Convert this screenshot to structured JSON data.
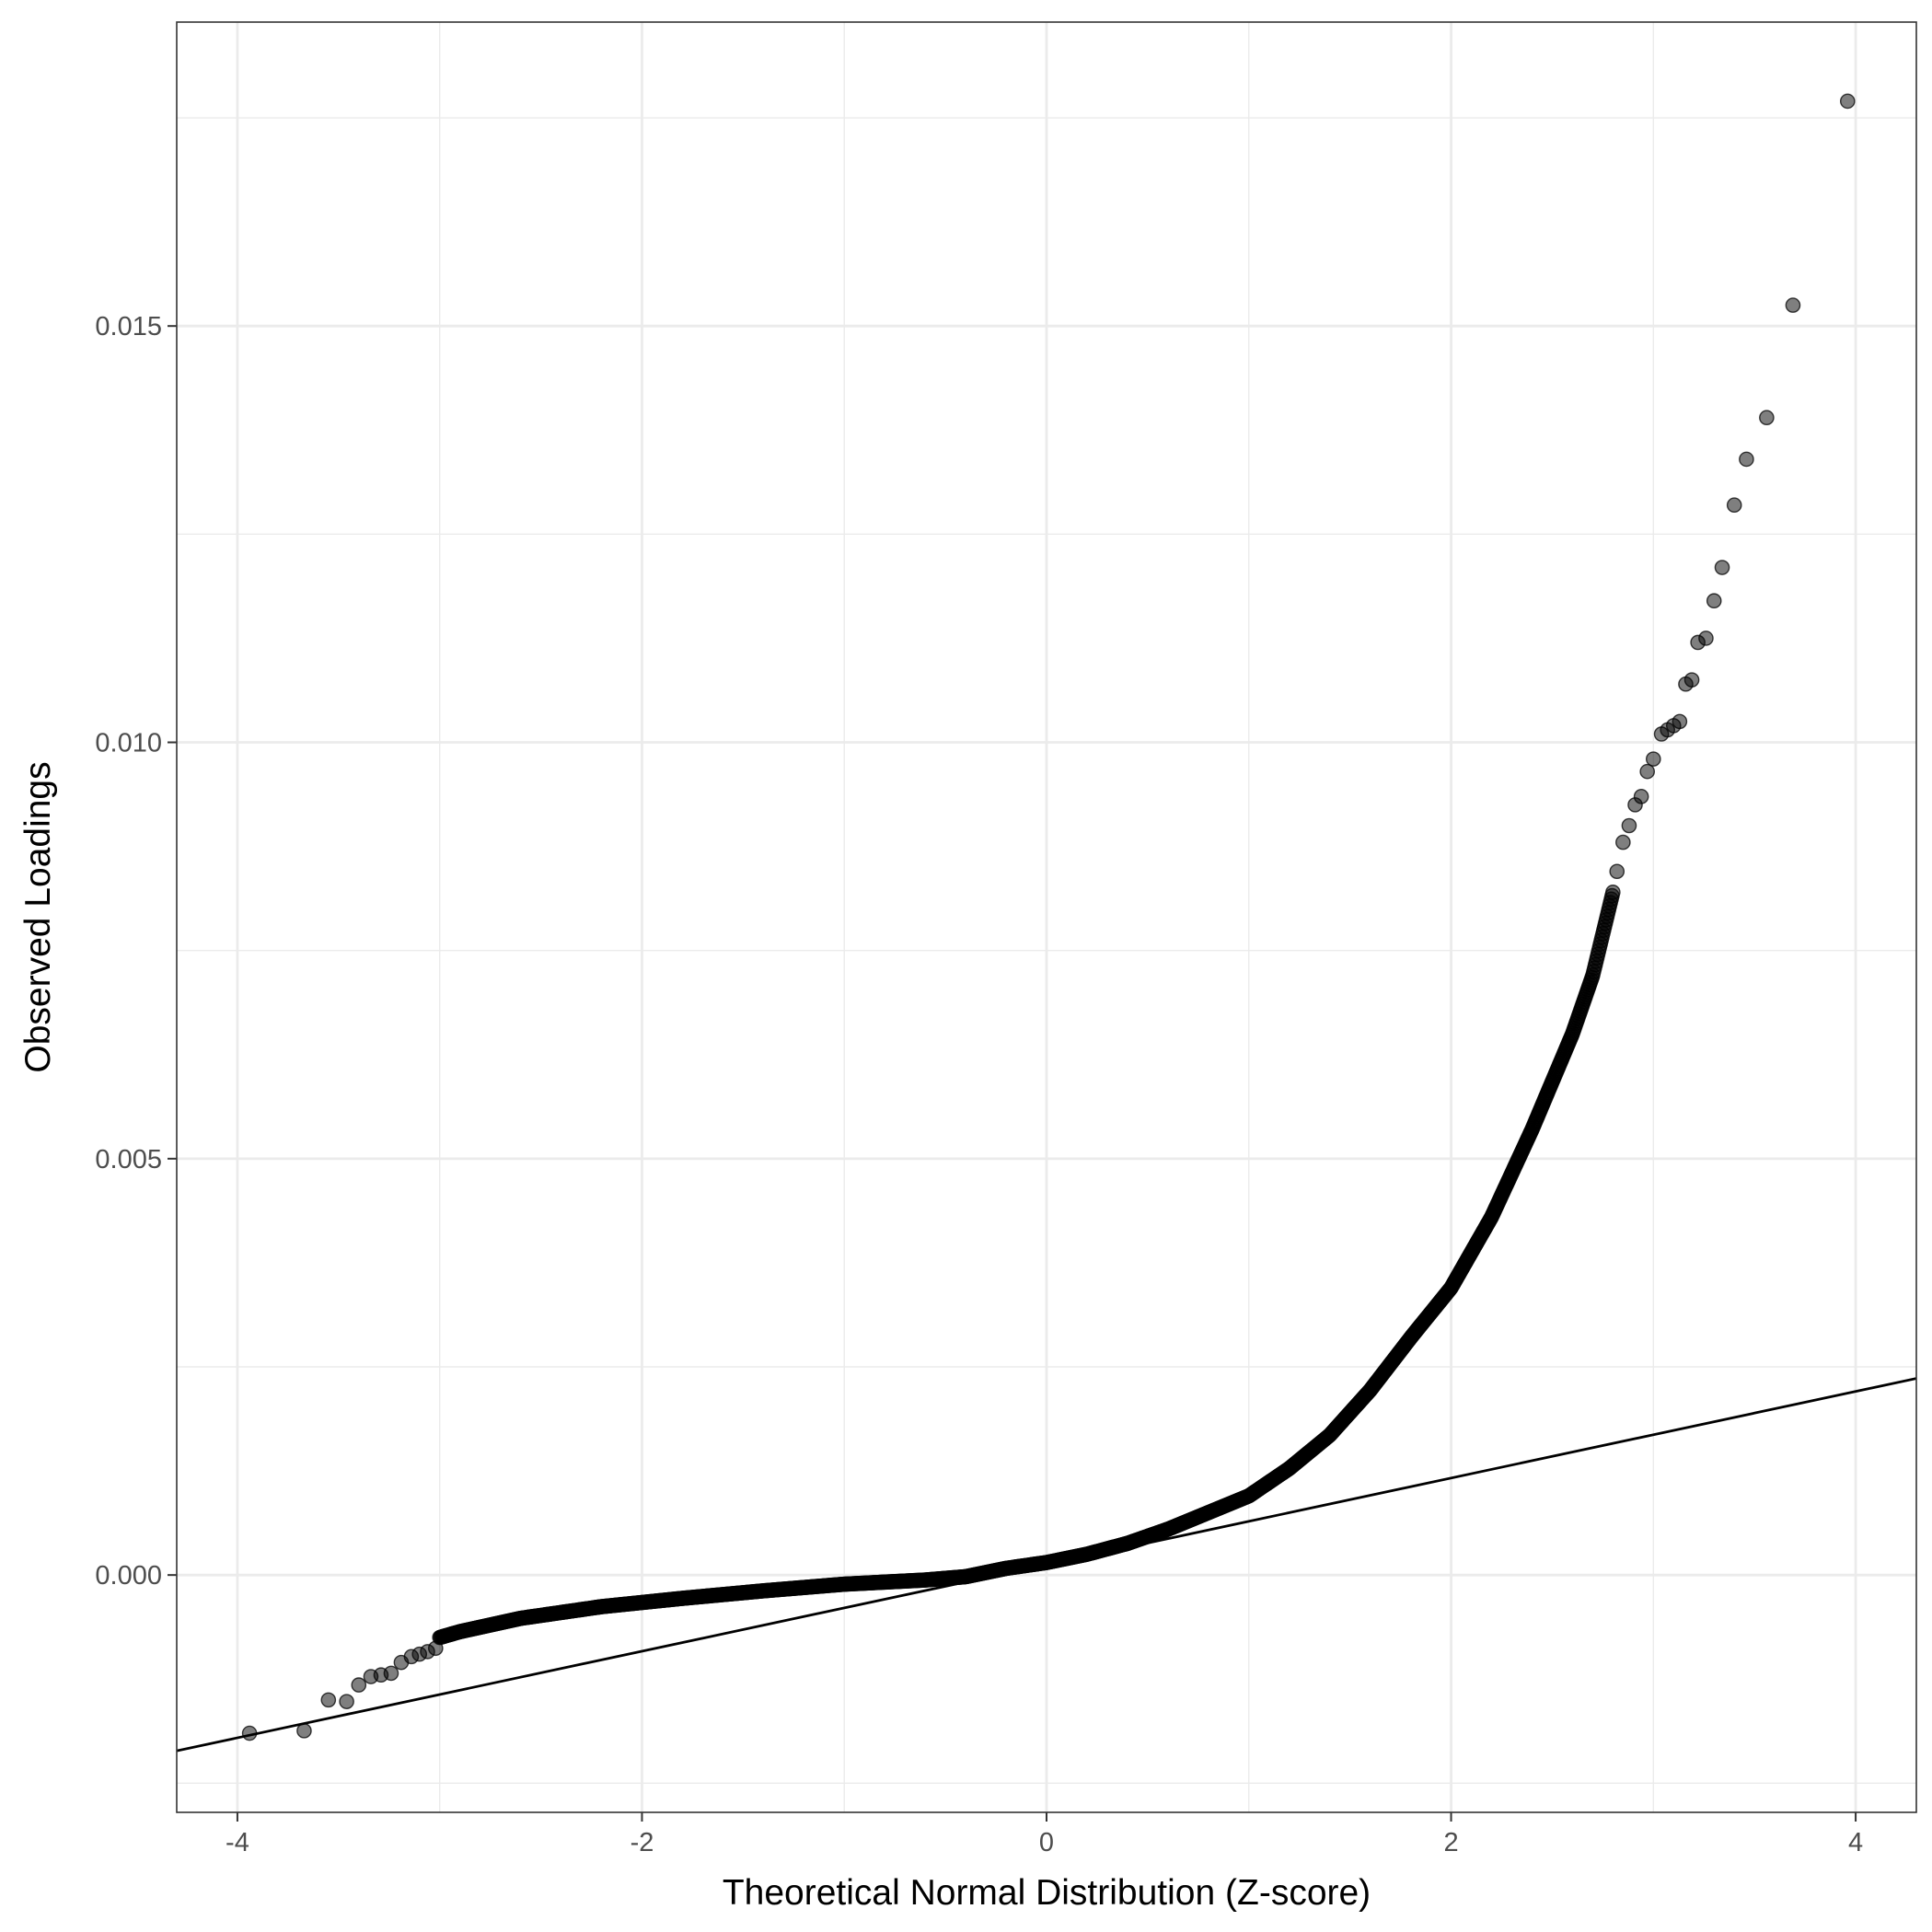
{
  "chart_data": {
    "type": "scatter",
    "title": "",
    "xlabel": "Theoretical Normal Distribution (Z-score)",
    "ylabel": "Observed Loadings",
    "xlim": [
      -4.3,
      4.3
    ],
    "ylim": [
      -0.00285,
      0.01865
    ],
    "x_ticks": [
      -4,
      -2,
      0,
      2,
      4
    ],
    "x_tick_labels": [
      "-4",
      "-2",
      "0",
      "2",
      "4"
    ],
    "y_ticks": [
      0.0,
      0.005,
      0.01,
      0.015
    ],
    "y_tick_labels": [
      "0.000",
      "0.005",
      "0.010",
      "0.015"
    ],
    "grid": true,
    "legend": "none",
    "point_color": "#000000",
    "point_alpha": 0.5,
    "line_color": "#000000",
    "curve_anchors": [
      [
        -3.0,
        -0.00075
      ],
      [
        -2.9,
        -0.00068
      ],
      [
        -2.6,
        -0.00052
      ],
      [
        -2.2,
        -0.00038
      ],
      [
        -1.8,
        -0.00028
      ],
      [
        -1.4,
        -0.00019
      ],
      [
        -1.0,
        -0.00011
      ],
      [
        -0.6,
        -6e-05
      ],
      [
        -0.4,
        -2e-05
      ],
      [
        -0.2,
        8e-05
      ],
      [
        0.0,
        0.00015
      ],
      [
        0.2,
        0.00025
      ],
      [
        0.4,
        0.00038
      ],
      [
        0.6,
        0.00055
      ],
      [
        0.8,
        0.00075
      ],
      [
        1.0,
        0.00095
      ],
      [
        1.2,
        0.00128
      ],
      [
        1.4,
        0.00168
      ],
      [
        1.6,
        0.00222
      ],
      [
        1.8,
        0.00285
      ],
      [
        2.0,
        0.00345
      ],
      [
        2.2,
        0.0043
      ],
      [
        2.4,
        0.00535
      ],
      [
        2.6,
        0.0065
      ],
      [
        2.7,
        0.0072
      ],
      [
        2.8,
        0.0082
      ]
    ],
    "tail_points": [
      [
        -3.94,
        -0.0019
      ],
      [
        -3.67,
        -0.00187
      ],
      [
        -3.55,
        -0.0015
      ],
      [
        -3.46,
        -0.00152
      ],
      [
        -3.4,
        -0.00132
      ],
      [
        -3.34,
        -0.00122
      ],
      [
        -3.29,
        -0.0012
      ],
      [
        -3.24,
        -0.00118
      ],
      [
        -3.19,
        -0.00105
      ],
      [
        -3.14,
        -0.00098
      ],
      [
        -3.1,
        -0.00095
      ],
      [
        -3.06,
        -0.00092
      ],
      [
        -3.02,
        -0.00088
      ],
      [
        2.82,
        0.00845
      ],
      [
        2.85,
        0.0088
      ],
      [
        2.88,
        0.009
      ],
      [
        2.91,
        0.00925
      ],
      [
        2.94,
        0.00935
      ],
      [
        2.97,
        0.00965
      ],
      [
        3.0,
        0.0098
      ],
      [
        3.04,
        0.0101
      ],
      [
        3.07,
        0.01015
      ],
      [
        3.1,
        0.0102
      ],
      [
        3.13,
        0.01025
      ],
      [
        3.16,
        0.0107
      ],
      [
        3.19,
        0.01075
      ],
      [
        3.22,
        0.0112
      ],
      [
        3.26,
        0.01125
      ],
      [
        3.3,
        0.0117
      ],
      [
        3.34,
        0.0121
      ],
      [
        3.4,
        0.01285
      ],
      [
        3.46,
        0.0134
      ],
      [
        3.56,
        0.0139
      ],
      [
        3.69,
        0.01525
      ],
      [
        3.96,
        0.0177
      ]
    ],
    "reference_line": {
      "intercept": 0.000125,
      "slope": 0.00052
    }
  }
}
